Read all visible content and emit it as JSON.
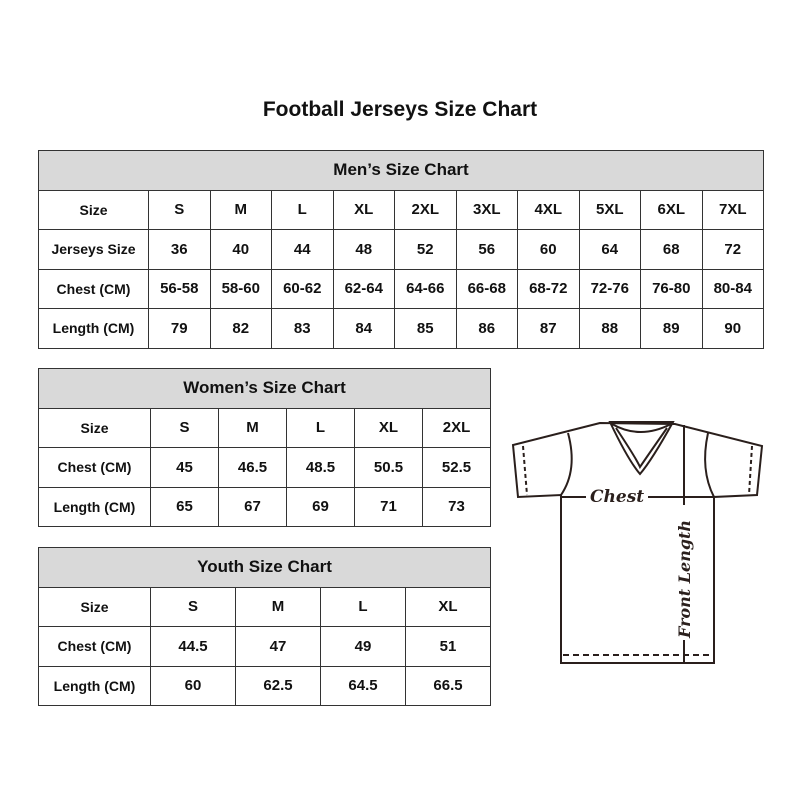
{
  "title": "Football Jerseys Size Chart",
  "men": {
    "caption": "Men’s Size Chart",
    "rows": [
      {
        "label": "Size",
        "values": [
          "S",
          "M",
          "L",
          "XL",
          "2XL",
          "3XL",
          "4XL",
          "5XL",
          "6XL",
          "7XL"
        ]
      },
      {
        "label": "Jerseys Size",
        "values": [
          "36",
          "40",
          "44",
          "48",
          "52",
          "56",
          "60",
          "64",
          "68",
          "72"
        ]
      },
      {
        "label": "Chest (CM)",
        "values": [
          "56-58",
          "58-60",
          "60-62",
          "62-64",
          "64-66",
          "66-68",
          "68-72",
          "72-76",
          "76-80",
          "80-84"
        ]
      },
      {
        "label": "Length (CM)",
        "values": [
          "79",
          "82",
          "83",
          "84",
          "85",
          "86",
          "87",
          "88",
          "89",
          "90"
        ]
      }
    ]
  },
  "women": {
    "caption": "Women’s Size Chart",
    "rows": [
      {
        "label": "Size",
        "values": [
          "S",
          "M",
          "L",
          "XL",
          "2XL"
        ]
      },
      {
        "label": "Chest (CM)",
        "values": [
          "45",
          "46.5",
          "48.5",
          "50.5",
          "52.5"
        ]
      },
      {
        "label": "Length (CM)",
        "values": [
          "65",
          "67",
          "69",
          "71",
          "73"
        ]
      }
    ]
  },
  "youth": {
    "caption": "Youth Size Chart",
    "rows": [
      {
        "label": "Size",
        "values": [
          "S",
          "M",
          "L",
          "XL"
        ]
      },
      {
        "label": "Chest (CM)",
        "values": [
          "44.5",
          "47",
          "49",
          "51"
        ]
      },
      {
        "label": "Length (CM)",
        "values": [
          "60",
          "62.5",
          "64.5",
          "66.5"
        ]
      }
    ]
  },
  "diagram": {
    "chest_label": "Chest",
    "length_label": "Front Length"
  }
}
